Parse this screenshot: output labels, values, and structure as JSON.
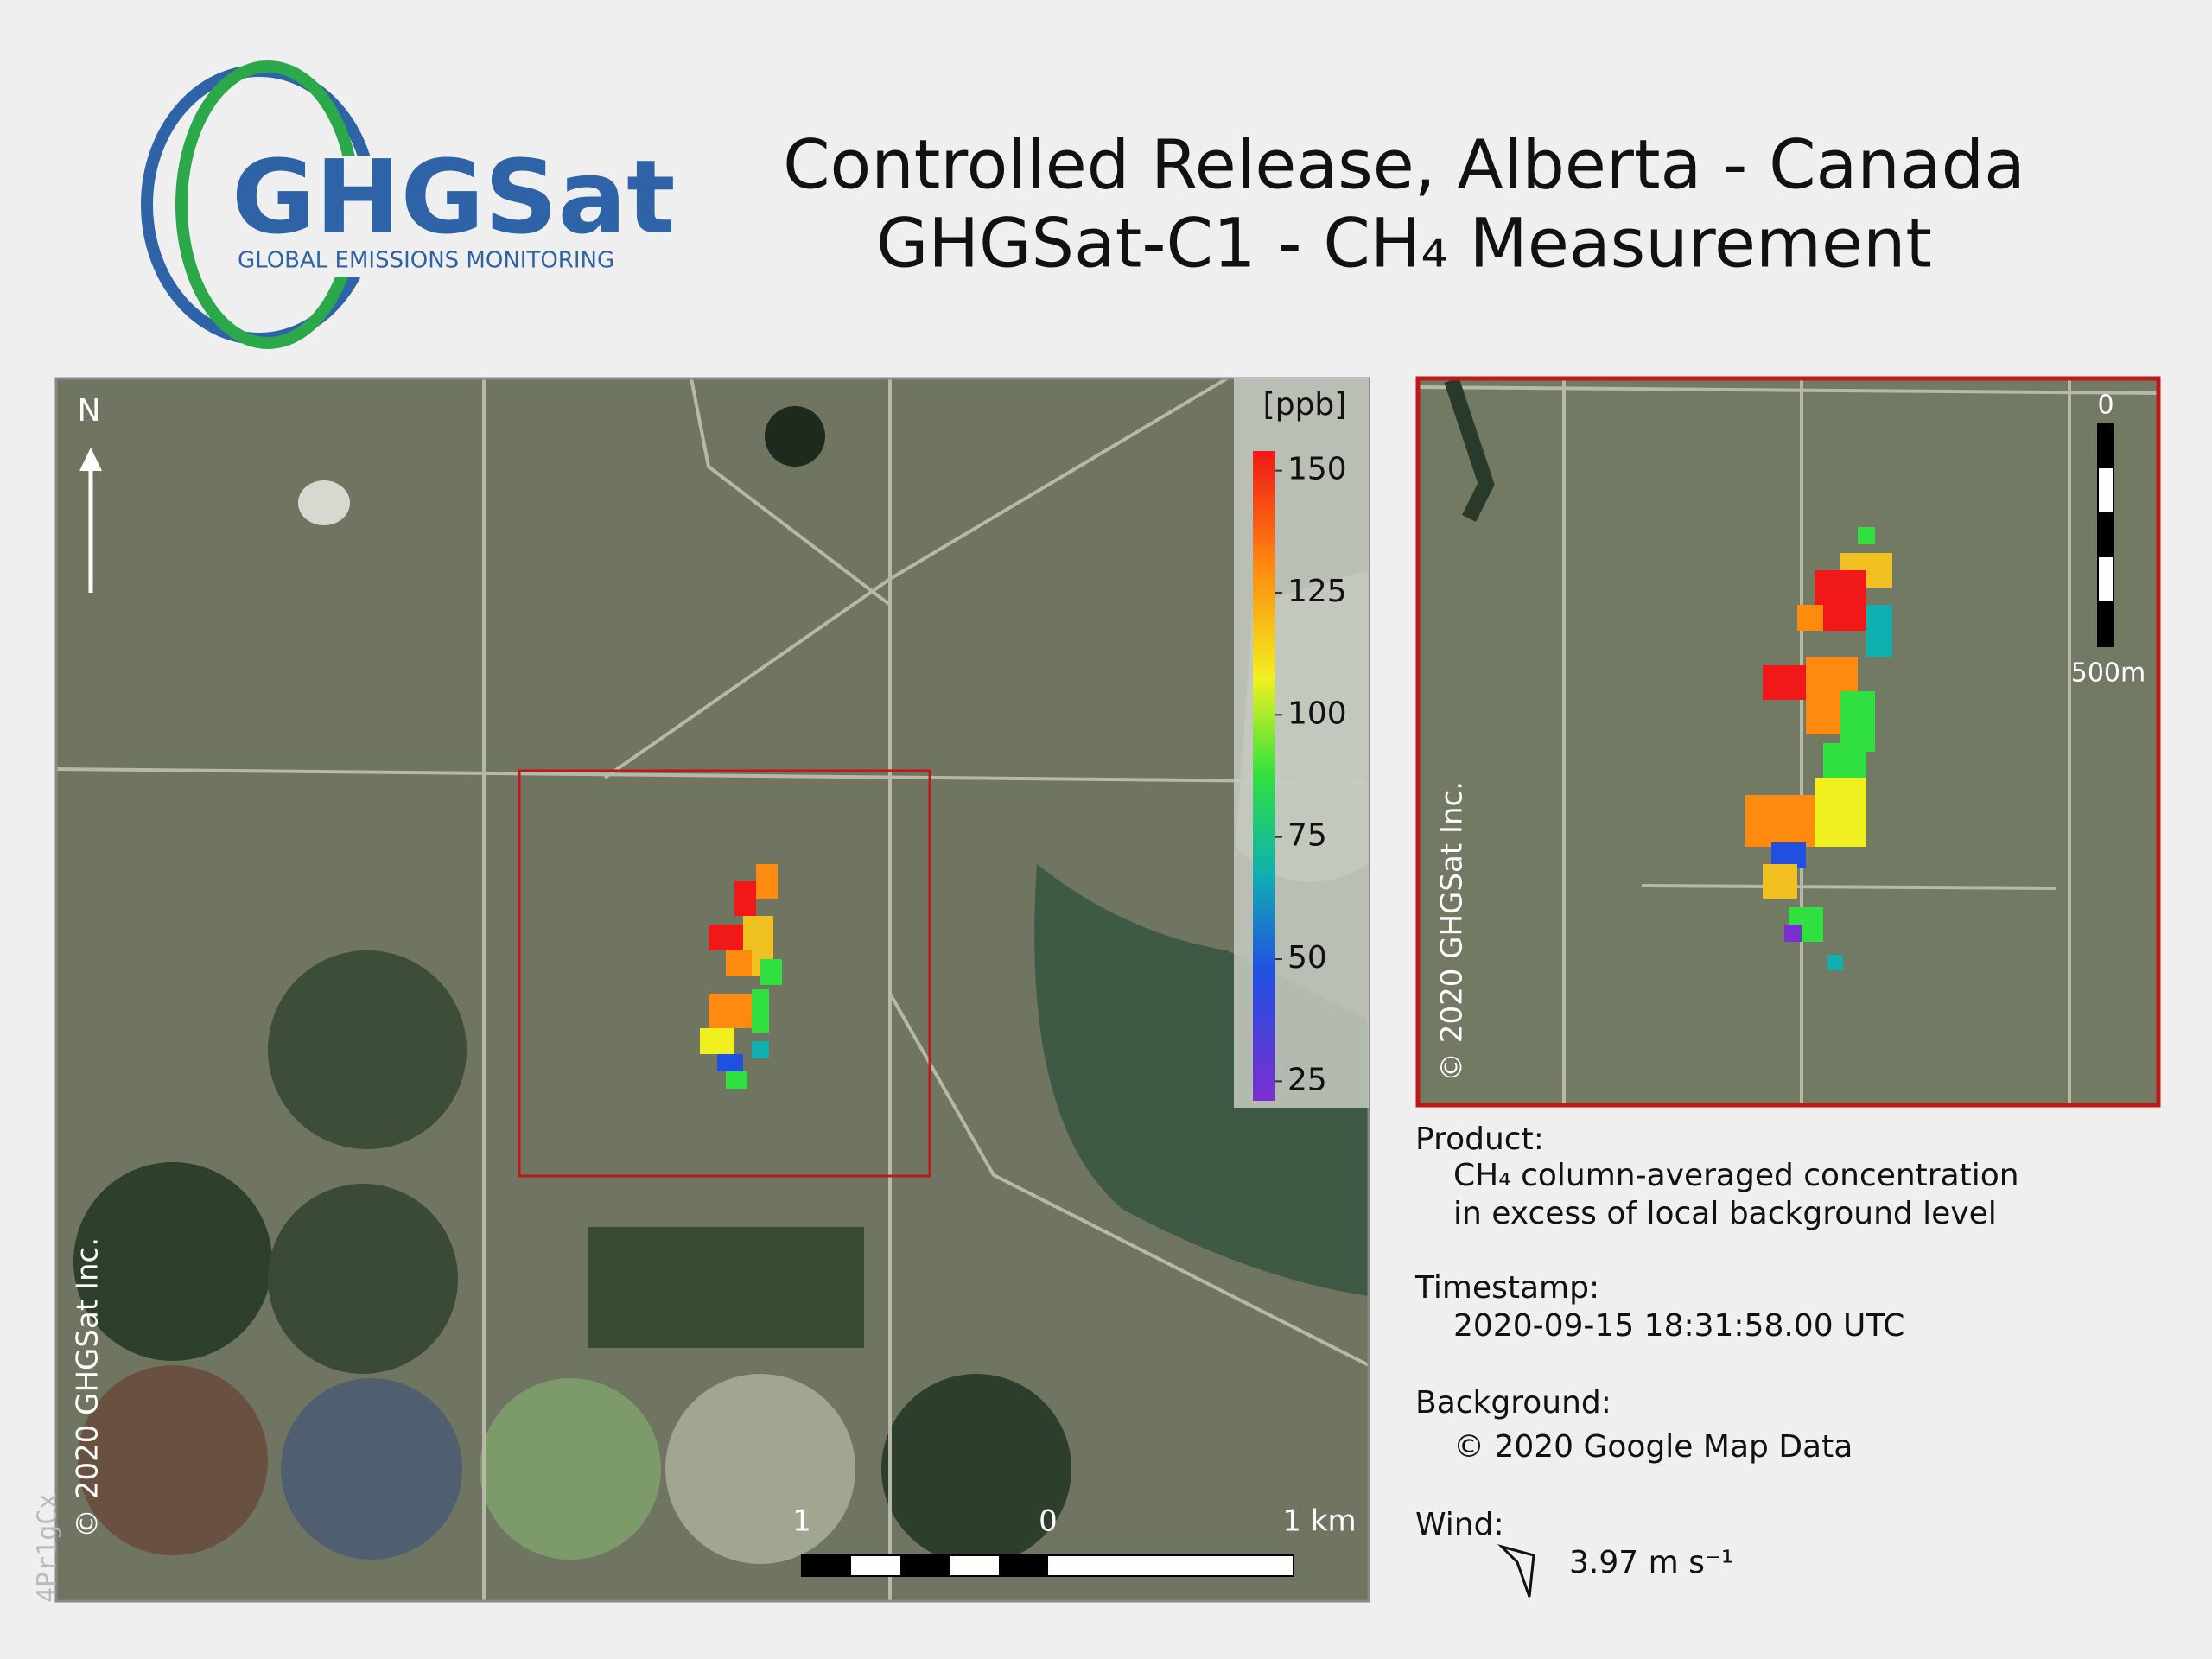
{
  "logo": {
    "name": "GHGSat",
    "tagline": "GLOBAL EMISSIONS MONITORING"
  },
  "header": {
    "title_line1": "Controlled Release, Alberta - Canada",
    "title_line2": "GHGSat-C1 - CH₄ Measurement"
  },
  "map": {
    "north": "N",
    "copyright": "© 2020 GHGSat Inc.",
    "colorbar": {
      "unit": "[ppb]",
      "clim": [
        21,
        154
      ],
      "ticks": [
        25,
        50,
        75,
        100,
        125,
        150
      ]
    },
    "scale_bar": {
      "labels": [
        "1",
        "0",
        "1 km"
      ]
    }
  },
  "inset": {
    "copyright": "© 2020 GHGSat Inc.",
    "scale_bar": {
      "labels": [
        "0",
        "500m"
      ]
    }
  },
  "info": {
    "product_label": "Product:",
    "product_lines": [
      "CH₄ column-averaged concentration",
      "in excess of local background level"
    ],
    "timestamp_label": "Timestamp:",
    "timestamp": "2020-09-15 18:31:58.00 UTC",
    "background_label": "Background:",
    "background": "© 2020 Google Map Data",
    "wind_label": "Wind:",
    "wind_speed": "3.97 m s⁻¹"
  },
  "watermark": "4Pr1gCx"
}
